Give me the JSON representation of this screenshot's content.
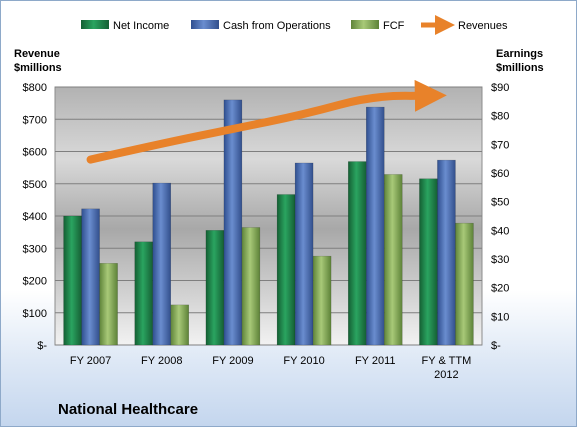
{
  "chart_data": {
    "type": "bar",
    "title": "National Healthcare",
    "categories": [
      "FY 2007",
      "FY 2008",
      "FY 2009",
      "FY 2010",
      "FY 2011",
      "FY & TTM 2012"
    ],
    "bar_series_axis": "right",
    "series": [
      {
        "name": "Net Income",
        "axis": "right",
        "color": "#1f8a4c",
        "values": [
          45,
          36,
          40,
          52.5,
          64,
          58
        ]
      },
      {
        "name": "Cash from Operations",
        "axis": "right",
        "color": "#4a6fb5",
        "values": [
          47.5,
          56.5,
          85.5,
          63.5,
          83,
          64.5
        ]
      },
      {
        "name": "FCF",
        "axis": "right",
        "color": "#8cb15b",
        "values": [
          28.5,
          14,
          41,
          31,
          59.5,
          42.5
        ]
      }
    ],
    "line_series": {
      "name": "Revenues",
      "axis": "left",
      "color": "#e8822a",
      "values": [
        575,
        625,
        670,
        715,
        775,
        770
      ]
    },
    "left_axis": {
      "label_line1": "Revenue",
      "label_line2": "$millions",
      "ylim": [
        0,
        800
      ],
      "ticks": [
        {
          "value": 0,
          "label": "$-"
        },
        {
          "value": 100,
          "label": "$100"
        },
        {
          "value": 200,
          "label": "$200"
        },
        {
          "value": 300,
          "label": "$300"
        },
        {
          "value": 400,
          "label": "$400"
        },
        {
          "value": 500,
          "label": "$500"
        },
        {
          "value": 600,
          "label": "$600"
        },
        {
          "value": 700,
          "label": "$700"
        },
        {
          "value": 800,
          "label": "$800"
        }
      ]
    },
    "right_axis": {
      "label_line1": "Earnings",
      "label_line2": "$millions",
      "ylim": [
        0,
        90
      ],
      "ticks": [
        {
          "value": 0,
          "label": "$-"
        },
        {
          "value": 10,
          "label": "$10"
        },
        {
          "value": 20,
          "label": "$20"
        },
        {
          "value": 30,
          "label": "$30"
        },
        {
          "value": 40,
          "label": "$40"
        },
        {
          "value": 50,
          "label": "$50"
        },
        {
          "value": 60,
          "label": "$60"
        },
        {
          "value": 70,
          "label": "$70"
        },
        {
          "value": 80,
          "label": "$80"
        },
        {
          "value": 90,
          "label": "$90"
        }
      ]
    },
    "grid": true,
    "legend_position": "top"
  }
}
